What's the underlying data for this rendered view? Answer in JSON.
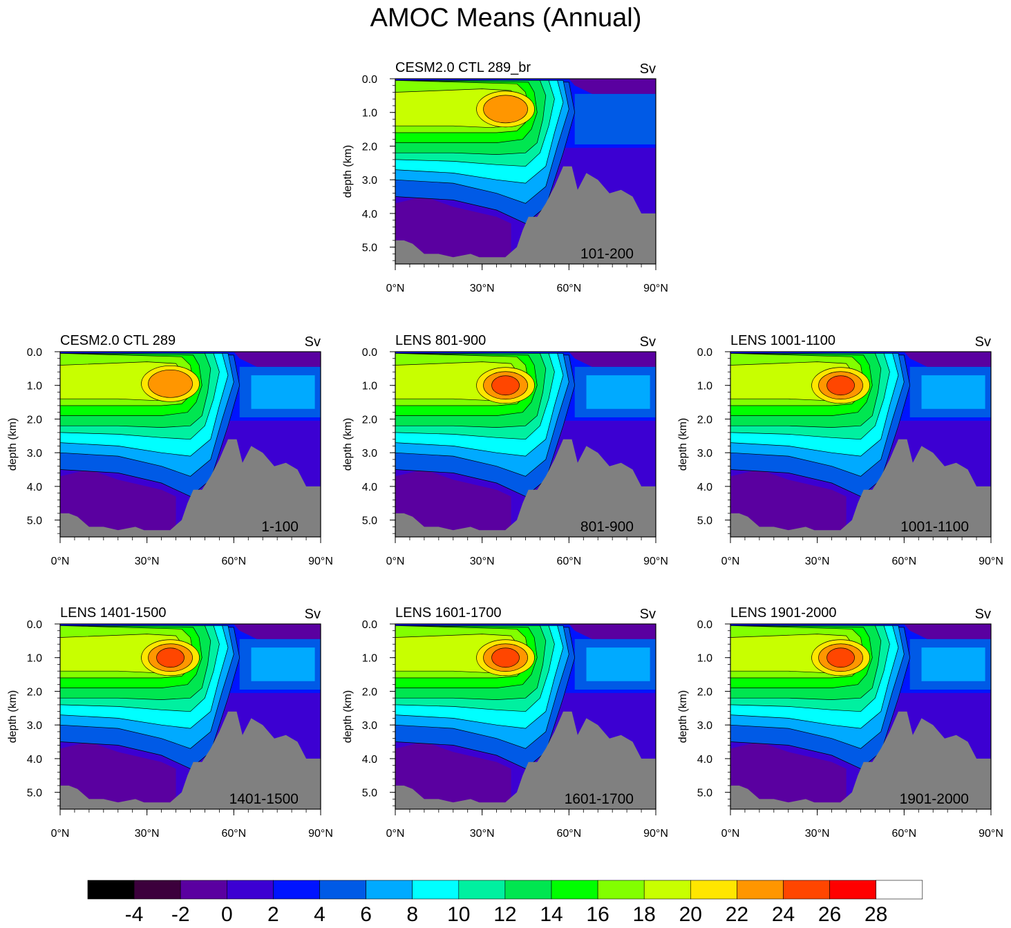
{
  "figure_title": "AMOC Means (Annual)",
  "colorbar": {
    "colors": [
      "#000000",
      "#3c003c",
      "#5a00a0",
      "#3c00d2",
      "#0014ff",
      "#005ae6",
      "#00aaff",
      "#00ffff",
      "#00f0a0",
      "#00e650",
      "#00ff00",
      "#82ff00",
      "#c8ff00",
      "#ffe600",
      "#ff9600",
      "#ff4600",
      "#ff0000",
      "#ffffff"
    ],
    "labels": [
      "-4",
      "-2",
      "0",
      "2",
      "4",
      "6",
      "8",
      "10",
      "12",
      "14",
      "16",
      "18",
      "20",
      "22",
      "24",
      "26",
      "28"
    ]
  },
  "chart_data": [
    {
      "type": "contour",
      "title": "CESM2.0 CTL 289_br",
      "units": "Sv",
      "period": "101-200",
      "xlabel": "",
      "ylabel": "depth (km)",
      "xticks": [
        "0°N",
        "30°N",
        "60°N",
        "90°N"
      ],
      "yticks": [
        "0.0",
        "1.0",
        "2.0",
        "3.0",
        "4.0",
        "5.0"
      ],
      "xlim": [
        0,
        90
      ],
      "ylim": [
        0,
        5.5
      ],
      "max_overturning_sv": 22.5,
      "max_location": {
        "lat": 40,
        "depth_km": 0.9
      }
    },
    {
      "type": "contour",
      "title": "CESM2.0 CTL 289",
      "units": "Sv",
      "period": "1-100",
      "xlabel": "",
      "ylabel": "depth (km)",
      "xticks": [
        "0°N",
        "30°N",
        "60°N",
        "90°N"
      ],
      "yticks": [
        "0.0",
        "1.0",
        "2.0",
        "3.0",
        "4.0",
        "5.0"
      ],
      "xlim": [
        0,
        90
      ],
      "ylim": [
        0,
        5.5
      ],
      "max_overturning_sv": 23,
      "max_location": {
        "lat": 40,
        "depth_km": 0.95
      }
    },
    {
      "type": "contour",
      "title": "LENS 801-900",
      "units": "Sv",
      "period": "801-900",
      "xlabel": "",
      "ylabel": "depth (km)",
      "xticks": [
        "0°N",
        "30°N",
        "60°N",
        "90°N"
      ],
      "yticks": [
        "0.0",
        "1.0",
        "2.0",
        "3.0",
        "4.0",
        "5.0"
      ],
      "xlim": [
        0,
        90
      ],
      "ylim": [
        0,
        5.5
      ],
      "max_overturning_sv": 25,
      "max_location": {
        "lat": 40,
        "depth_km": 1.0
      }
    },
    {
      "type": "contour",
      "title": "LENS 1001-1100",
      "units": "Sv",
      "period": "1001-1100",
      "xlabel": "",
      "ylabel": "depth (km)",
      "xticks": [
        "0°N",
        "30°N",
        "60°N",
        "90°N"
      ],
      "yticks": [
        "0.0",
        "1.0",
        "2.0",
        "3.0",
        "4.0",
        "5.0"
      ],
      "xlim": [
        0,
        90
      ],
      "ylim": [
        0,
        5.5
      ],
      "max_overturning_sv": 25,
      "max_location": {
        "lat": 40,
        "depth_km": 1.0
      }
    },
    {
      "type": "contour",
      "title": "LENS 1401-1500",
      "units": "Sv",
      "period": "1401-1500",
      "xlabel": "",
      "ylabel": "depth (km)",
      "xticks": [
        "0°N",
        "30°N",
        "60°N",
        "90°N"
      ],
      "yticks": [
        "0.0",
        "1.0",
        "2.0",
        "3.0",
        "4.0",
        "5.0"
      ],
      "xlim": [
        0,
        90
      ],
      "ylim": [
        0,
        5.5
      ],
      "max_overturning_sv": 25,
      "max_location": {
        "lat": 40,
        "depth_km": 1.0
      }
    },
    {
      "type": "contour",
      "title": "LENS 1601-1700",
      "units": "Sv",
      "period": "1601-1700",
      "xlabel": "",
      "ylabel": "depth (km)",
      "xticks": [
        "0°N",
        "30°N",
        "60°N",
        "90°N"
      ],
      "yticks": [
        "0.0",
        "1.0",
        "2.0",
        "3.0",
        "4.0",
        "5.0"
      ],
      "xlim": [
        0,
        90
      ],
      "ylim": [
        0,
        5.5
      ],
      "max_overturning_sv": 25,
      "max_location": {
        "lat": 40,
        "depth_km": 1.0
      }
    },
    {
      "type": "contour",
      "title": "LENS 1901-2000",
      "units": "Sv",
      "period": "1901-2000",
      "xlabel": "",
      "ylabel": "depth (km)",
      "xticks": [
        "0°N",
        "30°N",
        "60°N",
        "90°N"
      ],
      "yticks": [
        "0.0",
        "1.0",
        "2.0",
        "3.0",
        "4.0",
        "5.0"
      ],
      "xlim": [
        0,
        90
      ],
      "ylim": [
        0,
        5.5
      ],
      "max_overturning_sv": 25,
      "max_location": {
        "lat": 40,
        "depth_km": 1.0
      }
    }
  ]
}
